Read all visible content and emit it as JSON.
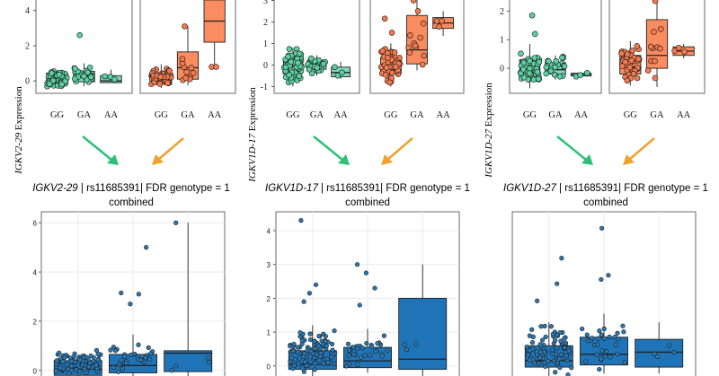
{
  "colors": {
    "green_fill": "#7fd6b8",
    "green_dot": "#5ccfa3",
    "orange_fill": "#fa8c5f",
    "orange_dot": "#f47a4e",
    "blue_fill": "#1f74b8",
    "blue_dot": "#2b79b4",
    "panel_border": "#5a5a5a",
    "arrow_green": "#2cc177",
    "arrow_orange": "#f2a12c"
  },
  "chart_data": [
    {
      "type": "box",
      "gene": "IGKV2-29",
      "ylabel_gene": "IGKV2-29",
      "ylabel_suffix": " Expression",
      "ylim": [
        -0.5,
        4.7
      ],
      "yticks": [
        "0",
        "2",
        "4"
      ],
      "ytick_values": [
        0,
        2,
        4
      ],
      "categories": [
        "GG",
        "GA",
        "AA"
      ],
      "panels": [
        {
          "name": "group-green",
          "color": "green",
          "boxes": [
            {
              "q1": -0.2,
              "median": -0.05,
              "q3": 0.45,
              "lo": -0.4,
              "hi": 0.55,
              "n": 55,
              "spread": [
                -0.35,
                0.6
              ],
              "extra": []
            },
            {
              "q1": -0.05,
              "median": 0.2,
              "q3": 0.55,
              "lo": -0.3,
              "hi": 1.0,
              "n": 24,
              "spread": [
                -0.25,
                0.9
              ],
              "extra": [
                2.6
              ]
            },
            {
              "q1": -0.1,
              "median": 0.0,
              "q3": 0.3,
              "lo": -0.1,
              "hi": 0.65,
              "n": 3,
              "spread": [
                -0.1,
                0.65
              ],
              "extra": []
            }
          ]
        },
        {
          "name": "group-orange",
          "color": "orange",
          "boxes": [
            {
              "q1": -0.2,
              "median": 0.0,
              "q3": 0.4,
              "lo": -0.4,
              "hi": 0.95,
              "n": 45,
              "spread": [
                -0.35,
                0.8
              ],
              "extra": []
            },
            {
              "q1": 0.1,
              "median": 0.75,
              "q3": 1.65,
              "lo": -0.25,
              "hi": 3.1,
              "n": 10,
              "spread": [
                -0.2,
                1.6
              ],
              "extra": [
                3.1
              ]
            },
            {
              "q1": 2.2,
              "median": 3.4,
              "q3": 4.6,
              "lo": 0.8,
              "hi": 4.7,
              "n": 2,
              "spread": [
                0.8,
                0.8
              ],
              "extra": []
            }
          ]
        }
      ]
    },
    {
      "type": "box",
      "gene": "IGKV1D-17",
      "ylabel_gene": "IGKV1D-17",
      "ylabel_suffix": " Expression",
      "ylim": [
        -1.15,
        3.1
      ],
      "yticks": [
        "-1",
        "0",
        "1",
        "2",
        "3"
      ],
      "ytick_values": [
        -1,
        0,
        1,
        2,
        3
      ],
      "categories": [
        "GG",
        "GA",
        "AA"
      ],
      "panels": [
        {
          "name": "group-green",
          "color": "green",
          "boxes": [
            {
              "q1": -0.4,
              "median": -0.1,
              "q3": 0.3,
              "lo": -1.0,
              "hi": 0.8,
              "n": 60,
              "spread": [
                -0.9,
                0.8
              ],
              "extra": []
            },
            {
              "q1": -0.2,
              "median": 0.0,
              "q3": 0.2,
              "lo": -0.5,
              "hi": 0.45,
              "n": 25,
              "spread": [
                -0.45,
                0.45
              ],
              "extra": []
            },
            {
              "q1": -0.55,
              "median": -0.35,
              "q3": -0.1,
              "lo": -0.65,
              "hi": 0.15,
              "n": 3,
              "spread": [
                -0.6,
                0.1
              ],
              "extra": []
            }
          ]
        },
        {
          "name": "group-orange",
          "color": "orange",
          "boxes": [
            {
              "q1": -0.4,
              "median": -0.05,
              "q3": 0.35,
              "lo": -1.0,
              "hi": 1.0,
              "n": 50,
              "spread": [
                -0.95,
                1.0
              ],
              "extra": [
                1.5,
                2.15
              ]
            },
            {
              "q1": 0.05,
              "median": 0.7,
              "q3": 2.3,
              "lo": -0.25,
              "hi": 3.0,
              "n": 10,
              "spread": [
                -0.2,
                2.2
              ],
              "extra": [
                2.5,
                3.0
              ]
            },
            {
              "q1": 1.7,
              "median": 1.95,
              "q3": 2.2,
              "lo": 1.35,
              "hi": 2.5,
              "n": 3,
              "spread": [
                1.4,
                2.5
              ],
              "extra": []
            }
          ]
        }
      ]
    },
    {
      "type": "box",
      "gene": "IGKV1D-27",
      "ylabel_gene": "IGKV1D-27",
      "ylabel_suffix": " Expression",
      "ylim": [
        -0.75,
        2.45
      ],
      "yticks": [
        "0",
        "1",
        "2"
      ],
      "ytick_values": [
        0,
        1,
        2
      ],
      "categories": [
        "GG",
        "GA",
        "AA"
      ],
      "panels": [
        {
          "name": "group-green",
          "color": "green",
          "boxes": [
            {
              "q1": -0.3,
              "median": -0.05,
              "q3": 0.3,
              "lo": -0.7,
              "hi": 0.85,
              "n": 55,
              "spread": [
                -0.65,
                0.7
              ],
              "extra": [
                1.2,
                1.85
              ]
            },
            {
              "q1": -0.2,
              "median": -0.05,
              "q3": 0.2,
              "lo": -0.4,
              "hi": 0.45,
              "n": 20,
              "spread": [
                -0.35,
                0.45
              ],
              "extra": []
            },
            {
              "q1": -0.27,
              "median": -0.22,
              "q3": -0.17,
              "lo": -0.3,
              "hi": -0.15,
              "n": 3,
              "spread": [
                -0.3,
                -0.15
              ],
              "extra": []
            }
          ]
        },
        {
          "name": "group-orange",
          "color": "orange",
          "boxes": [
            {
              "q1": -0.2,
              "median": 0.05,
              "q3": 0.45,
              "lo": -0.6,
              "hi": 0.95,
              "n": 45,
              "spread": [
                -0.55,
                0.8
              ],
              "extra": []
            },
            {
              "q1": 0.0,
              "median": 0.45,
              "q3": 1.7,
              "lo": -0.65,
              "hi": 2.35,
              "n": 10,
              "spread": [
                -0.6,
                1.6
              ],
              "extra": [
                2.35
              ]
            },
            {
              "q1": 0.45,
              "median": 0.6,
              "q3": 0.75,
              "lo": 0.35,
              "hi": 0.85,
              "n": 3,
              "spread": [
                0.4,
                0.8
              ],
              "extra": []
            }
          ]
        }
      ]
    },
    {
      "type": "box",
      "gene": "IGKV2-29",
      "title_gene": "IGKV2-29",
      "title_rest": " | rs11685391| FDR genotype = 1",
      "subtitle": "combined",
      "ylim": [
        -0.3,
        6.3
      ],
      "yticks": [
        "0",
        "2",
        "4",
        "6"
      ],
      "ytick_values": [
        0,
        2,
        4,
        6
      ],
      "categories": [
        "GG",
        "GA",
        "AA"
      ],
      "panels": [
        {
          "name": "combined",
          "color": "blue",
          "boxes": [
            {
              "q1": -0.2,
              "median": 0.05,
              "q3": 0.4,
              "lo": -0.3,
              "hi": 0.6,
              "n": 80,
              "spread": [
                -0.25,
                0.9
              ],
              "extra": []
            },
            {
              "q1": -0.1,
              "median": 0.2,
              "q3": 0.65,
              "lo": -0.3,
              "hi": 1.45,
              "n": 30,
              "spread": [
                -0.25,
                1.3
              ],
              "extra": [
                2.7,
                3.1,
                3.15,
                5.0
              ]
            },
            {
              "q1": -0.05,
              "median": 0.7,
              "q3": 0.8,
              "lo": -0.3,
              "hi": 6.0,
              "n": 4,
              "spread": [
                -0.1,
                0.8
              ],
              "extra": [
                6.0
              ]
            }
          ]
        }
      ]
    },
    {
      "type": "box",
      "gene": "IGKV1D-17",
      "title_gene": "IGKV1D-17",
      "title_rest": " | rs11685391| FDR genotype = 1",
      "subtitle": "combined",
      "ylim": [
        -0.35,
        4.45
      ],
      "yticks": [
        "0",
        "1",
        "2",
        "3",
        "4"
      ],
      "ytick_values": [
        0,
        1,
        2,
        3,
        4
      ],
      "categories": [
        "GG",
        "GA",
        "AA"
      ],
      "panels": [
        {
          "name": "combined",
          "color": "blue",
          "boxes": [
            {
              "q1": -0.1,
              "median": 0.05,
              "q3": 0.45,
              "lo": -0.3,
              "hi": 1.2,
              "n": 100,
              "spread": [
                -0.25,
                1.1
              ],
              "extra": [
                1.9,
                2.15,
                2.4,
                4.3
              ]
            },
            {
              "q1": -0.05,
              "median": 0.15,
              "q3": 0.55,
              "lo": -0.2,
              "hi": 1.1,
              "n": 30,
              "spread": [
                -0.15,
                1.0
              ],
              "extra": [
                1.8,
                2.3,
                2.75,
                3.0
              ]
            },
            {
              "q1": -0.1,
              "median": 0.2,
              "q3": 2.0,
              "lo": -0.3,
              "hi": 3.0,
              "n": 3,
              "spread": [
                -0.3,
                1.5
              ],
              "extra": []
            }
          ]
        }
      ]
    },
    {
      "type": "box",
      "gene": "IGKV1D-27",
      "title_gene": "IGKV1D-27",
      "title_rest": " | rs11685391| FDR genotype = 1",
      "subtitle": "combined",
      "ylim": [
        -0.3,
        3.5
      ],
      "yticks": [],
      "ytick_values": [],
      "categories": [
        "GG",
        "GA",
        "AA"
      ],
      "panels": [
        {
          "name": "combined",
          "color": "blue",
          "boxes": [
            {
              "q1": -0.05,
              "median": 0.1,
              "q3": 0.45,
              "lo": -0.3,
              "hi": 1.0,
              "n": 80,
              "spread": [
                -0.25,
                1.0
              ],
              "extra": [
                1.5,
                1.9,
                2.5
              ]
            },
            {
              "q1": 0.0,
              "median": 0.25,
              "q3": 0.65,
              "lo": -0.2,
              "hi": 1.2,
              "n": 30,
              "spread": [
                -0.15,
                1.1
              ],
              "extra": [
                2.0,
                2.1,
                3.2
              ]
            },
            {
              "q1": -0.05,
              "median": 0.3,
              "q3": 0.6,
              "lo": -0.2,
              "hi": 1.0,
              "n": 4,
              "spread": [
                -0.1,
                1.0
              ],
              "extra": []
            }
          ]
        }
      ]
    }
  ]
}
